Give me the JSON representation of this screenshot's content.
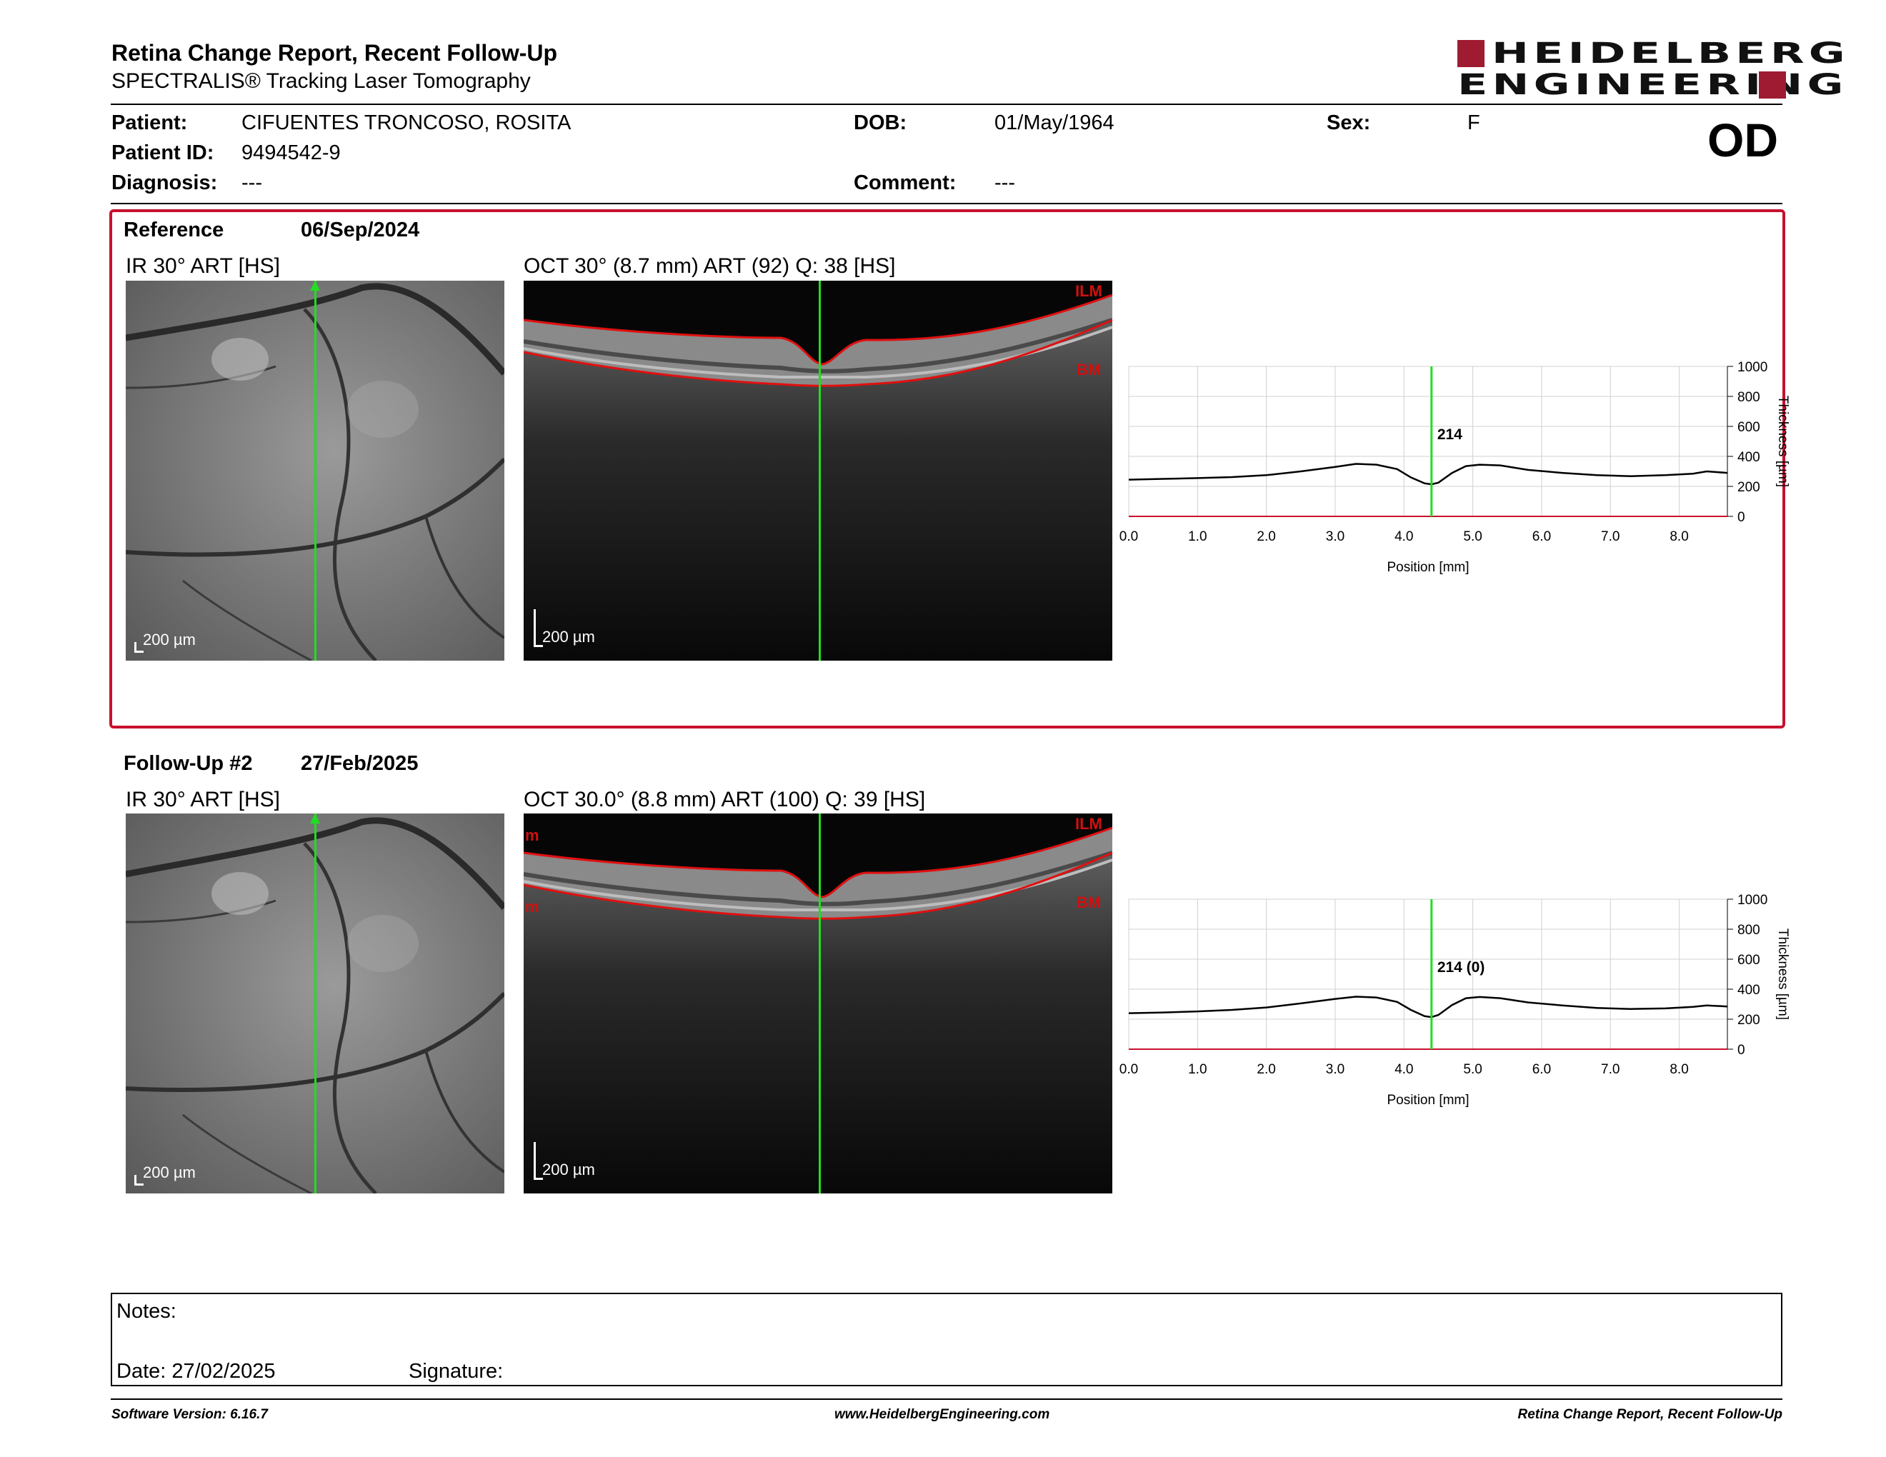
{
  "header": {
    "title": "Retina Change Report, Recent Follow-Up",
    "subtitle": "SPECTRALIS® Tracking Laser Tomography",
    "logo_line1": "HEIDELBERG",
    "logo_line2": "ENGINEERING"
  },
  "patient": {
    "patient_label": "Patient:",
    "patient_value": "CIFUENTES TRONCOSO, ROSITA",
    "dob_label": "DOB:",
    "dob_value": "01/May/1964",
    "sex_label": "Sex:",
    "sex_value": "F",
    "id_label": "Patient ID:",
    "id_value": "9494542-9",
    "diagnosis_label": "Diagnosis:",
    "diagnosis_value": "---",
    "comment_label": "Comment:",
    "comment_value": "---",
    "eye": "OD"
  },
  "reference": {
    "label": "Reference",
    "date": "06/Sep/2024",
    "ir_caption": "IR 30° ART [HS]",
    "oct_caption": "OCT 30° (8.7 mm) ART (92) Q: 38 [HS]",
    "scale_label": "200 µm",
    "ilm_label": "ILM",
    "bm_label": "BM"
  },
  "followup": {
    "label": "Follow-Up #2",
    "date": "27/Feb/2025",
    "ir_caption": "IR 30° ART [HS]",
    "oct_caption": "OCT 30.0° (8.8 mm) ART (100) Q: 39 [HS]",
    "scale_label": "200 µm",
    "ilm_label": "ILM",
    "bm_label": "BM",
    "m_label": "m"
  },
  "notes": {
    "notes_label": "Notes:",
    "date_label": "Date: 27/02/2025",
    "signature_label": "Signature:"
  },
  "footer": {
    "software": "Software Version: 6.16.7",
    "website": "www.HeidelbergEngineering.com",
    "report_name": "Retina Change Report, Recent Follow-Up"
  },
  "colors": {
    "brand": "#9e1b32",
    "frame": "#c8102e",
    "cursor": "#22dd22",
    "curve": "#000000"
  },
  "chart_data": [
    {
      "type": "line",
      "xlabel": "Position [mm]",
      "ylabel": "Thickness [µm]",
      "xlim": [
        0,
        8.7
      ],
      "ylim": [
        0,
        1000
      ],
      "xticks": [
        "0.0",
        "1.0",
        "2.0",
        "3.0",
        "4.0",
        "5.0",
        "6.0",
        "7.0",
        "8.0"
      ],
      "yticks": [
        "0",
        "200",
        "400",
        "600",
        "800",
        "1000"
      ],
      "cursor_x": 4.4,
      "cursor_label": "214",
      "grid": true,
      "x": [
        0,
        0.5,
        1.0,
        1.5,
        2.0,
        2.5,
        3.0,
        3.3,
        3.6,
        3.9,
        4.1,
        4.3,
        4.4,
        4.5,
        4.7,
        4.9,
        5.1,
        5.4,
        5.8,
        6.3,
        6.8,
        7.3,
        7.8,
        8.2,
        8.4,
        8.7
      ],
      "y": [
        245,
        250,
        255,
        262,
        275,
        300,
        330,
        350,
        345,
        315,
        260,
        220,
        214,
        225,
        290,
        335,
        345,
        340,
        310,
        290,
        275,
        268,
        275,
        285,
        300,
        290
      ]
    },
    {
      "type": "line",
      "xlabel": "Position [mm]",
      "ylabel": "Thickness [µm]",
      "xlim": [
        0,
        8.7
      ],
      "ylim": [
        0,
        1000
      ],
      "xticks": [
        "0.0",
        "1.0",
        "2.0",
        "3.0",
        "4.0",
        "5.0",
        "6.0",
        "7.0",
        "8.0"
      ],
      "yticks": [
        "0",
        "200",
        "400",
        "600",
        "800",
        "1000"
      ],
      "cursor_x": 4.4,
      "cursor_label": "214 (0)",
      "grid": true,
      "x": [
        0,
        0.5,
        1.0,
        1.5,
        2.0,
        2.5,
        3.0,
        3.3,
        3.6,
        3.9,
        4.1,
        4.3,
        4.4,
        4.5,
        4.7,
        4.9,
        5.1,
        5.4,
        5.8,
        6.3,
        6.8,
        7.3,
        7.8,
        8.2,
        8.4,
        8.7
      ],
      "y": [
        240,
        245,
        252,
        262,
        278,
        305,
        335,
        350,
        345,
        315,
        262,
        220,
        214,
        228,
        295,
        340,
        348,
        340,
        312,
        292,
        275,
        268,
        272,
        282,
        292,
        285
      ]
    }
  ]
}
